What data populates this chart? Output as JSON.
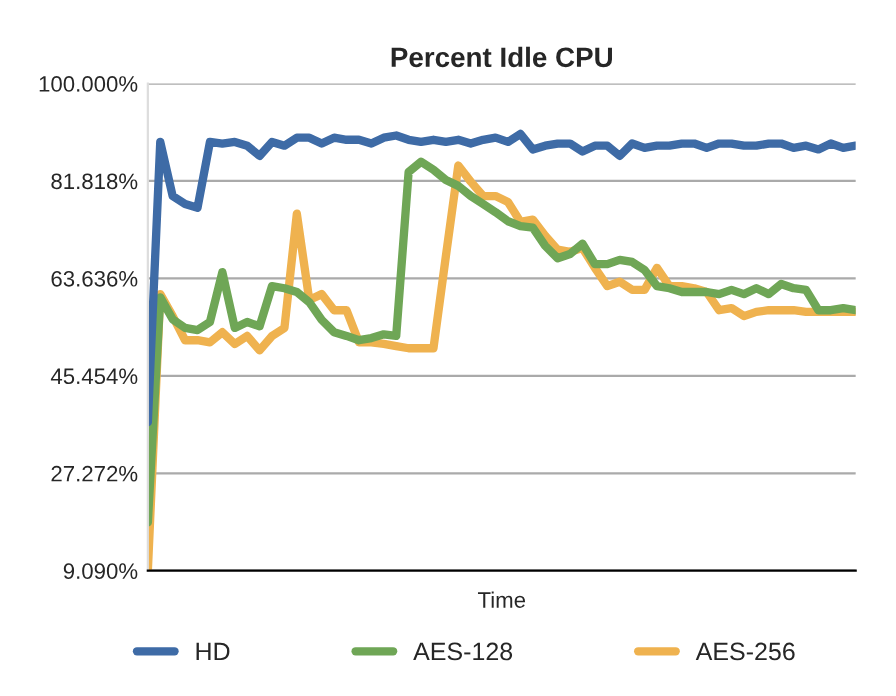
{
  "chart_data": {
    "type": "line",
    "title": "Percent Idle CPU",
    "xlabel": "Time",
    "categories": [
      null,
      null,
      null,
      null,
      null,
      null,
      null,
      null,
      null,
      null,
      null,
      null,
      null,
      null,
      null,
      null,
      null,
      null,
      null,
      null,
      null,
      null,
      null,
      null,
      null,
      null,
      null,
      null,
      null,
      null,
      null,
      null,
      null,
      null,
      null,
      null,
      null,
      null,
      null,
      null,
      null,
      null,
      null,
      null,
      null,
      null,
      null,
      null,
      null,
      null,
      null,
      null,
      null,
      null,
      null,
      null,
      null,
      null
    ],
    "series": [
      {
        "name": "HD",
        "color": "#3e6ba6",
        "values": [
          36.8,
          89.1,
          79.0,
          77.5,
          76.8,
          89.1,
          88.8,
          89.1,
          88.4,
          86.5,
          89.1,
          88.4,
          89.9,
          89.9,
          88.8,
          89.9,
          89.5,
          89.5,
          88.8,
          89.9,
          90.3,
          89.5,
          89.1,
          89.5,
          89.1,
          89.5,
          88.8,
          89.5,
          89.9,
          89.1,
          90.6,
          87.7,
          88.4,
          88.8,
          88.8,
          87.3,
          88.4,
          88.4,
          86.5,
          88.8,
          88.0,
          88.4,
          88.4,
          88.8,
          88.8,
          88.0,
          88.8,
          88.8,
          88.4,
          88.4,
          88.8,
          88.8,
          88.0,
          88.4,
          87.7,
          88.8,
          88.0,
          88.4
        ]
      },
      {
        "name": "AES-128",
        "color": "#6fa656",
        "values": [
          18.1,
          60.1,
          56.0,
          54.4,
          54.0,
          55.5,
          64.8,
          54.4,
          55.5,
          54.7,
          62.2,
          61.8,
          61.1,
          59.2,
          55.9,
          53.6,
          52.9,
          52.1,
          52.5,
          53.2,
          52.9,
          83.5,
          85.4,
          83.9,
          82.0,
          80.9,
          79.0,
          77.5,
          76.0,
          74.3,
          73.4,
          73.1,
          69.7,
          67.4,
          68.2,
          70.1,
          66.3,
          66.3,
          67.1,
          66.7,
          65.2,
          62.2,
          61.8,
          61.1,
          61.1,
          61.1,
          60.7,
          61.5,
          60.7,
          61.8,
          60.7,
          62.6,
          61.8,
          61.5,
          57.7,
          57.7,
          58.1,
          57.7
        ]
      },
      {
        "name": "AES-256",
        "color": "#efb24f",
        "values": [
          9.1,
          60.7,
          56.6,
          52.1,
          52.1,
          51.7,
          53.6,
          51.4,
          52.9,
          50.2,
          52.9,
          54.4,
          75.7,
          59.6,
          60.7,
          57.7,
          57.7,
          51.7,
          51.7,
          51.4,
          51.0,
          50.6,
          50.6,
          50.6,
          67.8,
          84.7,
          81.7,
          79.0,
          79.0,
          77.9,
          74.2,
          74.6,
          71.6,
          69.0,
          68.6,
          69.3,
          65.6,
          62.2,
          63.0,
          61.5,
          61.5,
          65.6,
          62.2,
          62.2,
          61.8,
          61.1,
          57.7,
          58.1,
          56.6,
          57.4,
          57.7,
          57.7,
          57.7,
          57.4,
          57.4,
          57.4,
          57.4,
          57.4
        ]
      }
    ],
    "ylim": [
      9.09,
      100
    ],
    "yticks": [
      {
        "value": 9.09,
        "label": "9.090%"
      },
      {
        "value": 27.272,
        "label": "27.272%"
      },
      {
        "value": 45.454,
        "label": "45.454%"
      },
      {
        "value": 63.636,
        "label": "63.636%"
      },
      {
        "value": 81.818,
        "label": "81.818%"
      },
      {
        "value": 100,
        "label": "100.000%"
      }
    ],
    "grid": "y",
    "legend": "bottom",
    "marker": "none",
    "line_style": "solid"
  }
}
